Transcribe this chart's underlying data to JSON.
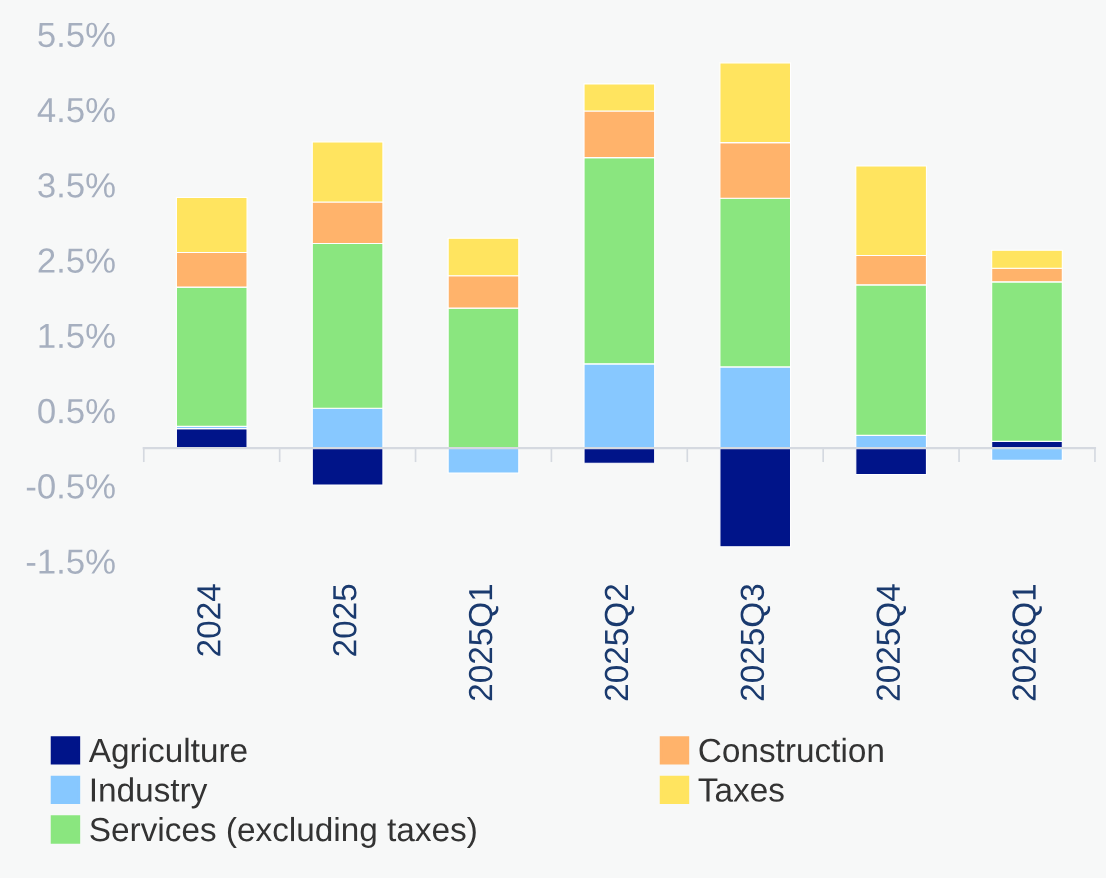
{
  "chart_data": {
    "type": "bar",
    "stacked": true,
    "categories": [
      "2024",
      "2025",
      "2025Q1",
      "2025Q2",
      "2025Q3",
      "2025Q4",
      "2026Q1"
    ],
    "series": [
      {
        "name": "Agriculture",
        "color": "#001489",
        "values": [
          0.26,
          -0.49,
          0,
          -0.2,
          -1.31,
          -0.35,
          0.09
        ]
      },
      {
        "name": "Industry",
        "color": "#87c8ff",
        "values": [
          0.03,
          0.53,
          -0.33,
          1.12,
          1.08,
          0.17,
          -0.16
        ]
      },
      {
        "name": "Services (excluding taxes)",
        "color": "#8ae67f",
        "values": [
          1.85,
          2.19,
          1.86,
          2.74,
          2.24,
          2.0,
          2.12
        ]
      },
      {
        "name": "Construction",
        "color": "#ffb36b",
        "values": [
          0.46,
          0.55,
          0.43,
          0.62,
          0.74,
          0.39,
          0.18
        ]
      },
      {
        "name": "Taxes",
        "color": "#ffe45f",
        "values": [
          0.73,
          0.8,
          0.5,
          0.36,
          1.06,
          1.19,
          0.24
        ]
      }
    ],
    "ylim": [
      -1.5,
      5.5
    ],
    "yticks": [
      {
        "value": -1.5,
        "label": "-1.5%"
      },
      {
        "value": -0.5,
        "label": "-0.5%"
      },
      {
        "value": 0.5,
        "label": "0.5%"
      },
      {
        "value": 1.5,
        "label": "1.5%"
      },
      {
        "value": 2.5,
        "label": "2.5%"
      },
      {
        "value": 3.5,
        "label": "3.5%"
      },
      {
        "value": 4.5,
        "label": "4.5%"
      },
      {
        "value": 5.5,
        "label": "5.5%"
      }
    ],
    "grid": false,
    "legend": "bottom"
  }
}
